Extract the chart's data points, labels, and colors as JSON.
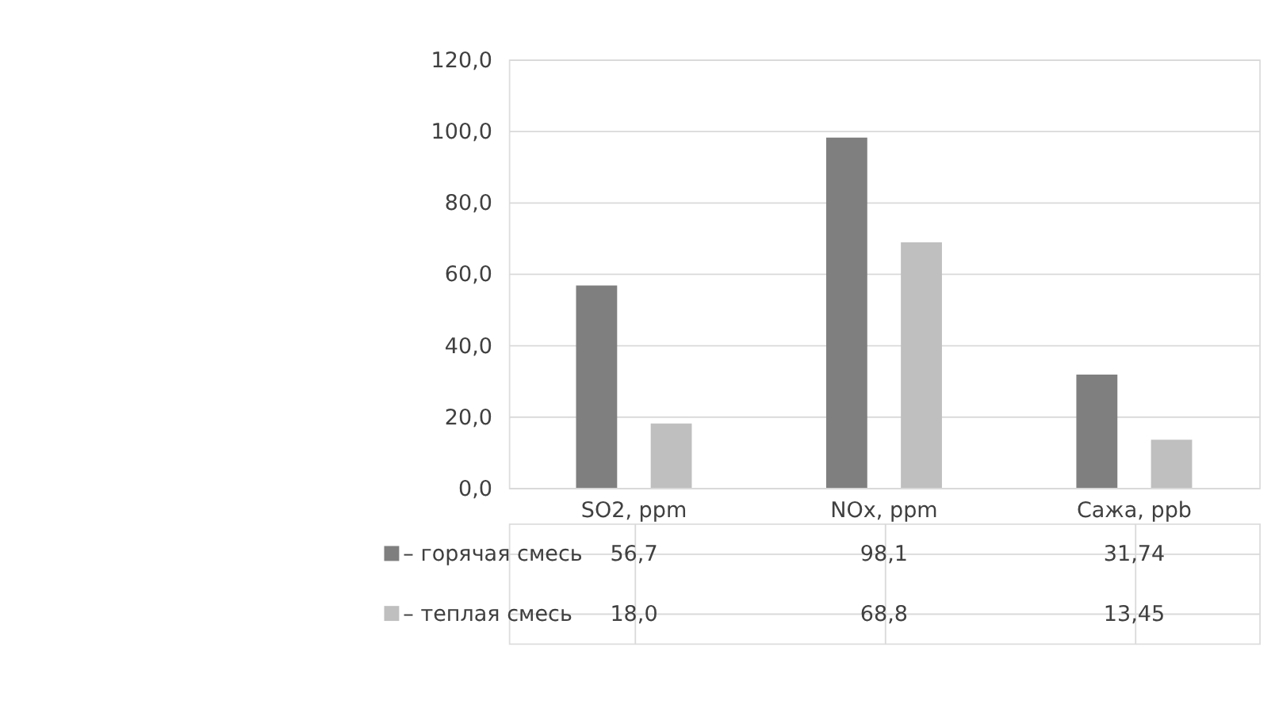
{
  "chart_data": {
    "type": "bar",
    "categories": [
      "SO2, ppm",
      "NOx, ppm",
      "Сажа, ppb"
    ],
    "series": [
      {
        "name": "– горячая смесь",
        "color": "#7f7f7f",
        "values": [
          56.7,
          98.1,
          31.74
        ],
        "value_labels": [
          "56,7",
          "98,1",
          "31,74"
        ]
      },
      {
        "name": "– теплая смесь",
        "color": "#bfbfbf",
        "values": [
          18.0,
          68.8,
          13.45
        ],
        "value_labels": [
          "18,0",
          "68,8",
          "13,45"
        ]
      }
    ],
    "ylim": [
      0,
      120
    ],
    "yticks": [
      {
        "value": 0,
        "label": "0,0"
      },
      {
        "value": 20,
        "label": "20,0"
      },
      {
        "value": 40,
        "label": "40,0"
      },
      {
        "value": 60,
        "label": "60,0"
      },
      {
        "value": 80,
        "label": "80,0"
      },
      {
        "value": 100,
        "label": "100,0"
      },
      {
        "value": 120,
        "label": "120,0"
      }
    ],
    "grid": "y",
    "legend": "bottom"
  }
}
